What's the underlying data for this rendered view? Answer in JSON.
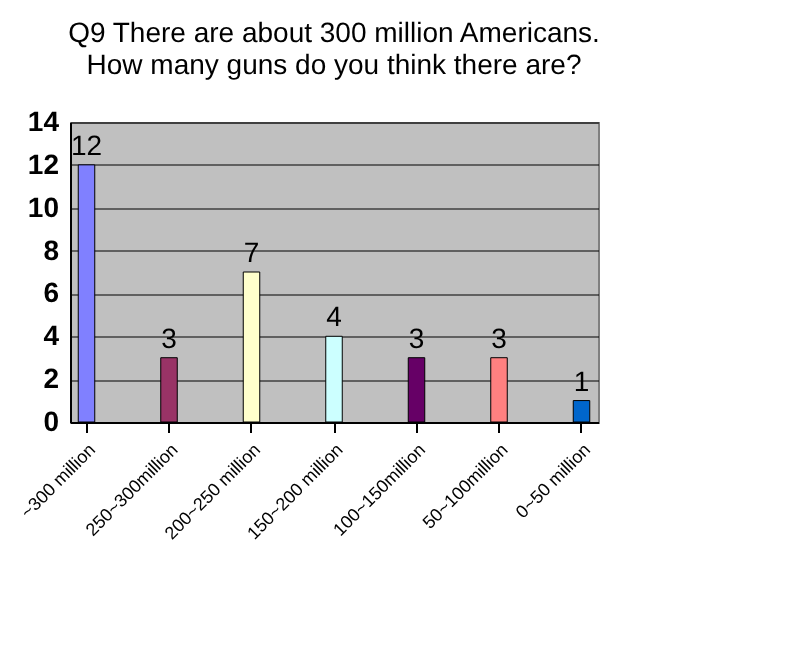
{
  "chart_data": {
    "type": "bar",
    "title": [
      "Q9 There are about 300 million Americans.",
      "How many guns do you think there are?"
    ],
    "categories": [
      "~300 million",
      "250~300million",
      "200~250 million",
      "150~200 million",
      "100~150million",
      "50~100million",
      "0~50 million"
    ],
    "values": [
      12,
      3,
      7,
      4,
      3,
      3,
      1
    ],
    "colors": [
      "#8080ff",
      "#993366",
      "#ffffcc",
      "#ccffff",
      "#660066",
      "#ff8080",
      "#0066cc"
    ],
    "ylim": [
      0,
      14
    ],
    "yticks": [
      0,
      2,
      4,
      6,
      8,
      10,
      12,
      14
    ],
    "grid": "y",
    "data_labels": true
  }
}
